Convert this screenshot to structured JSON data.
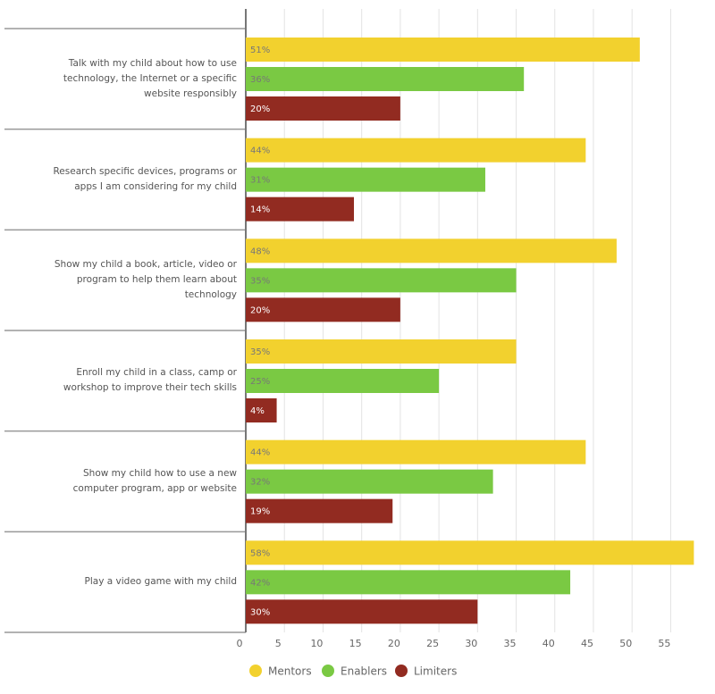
{
  "chart_data": {
    "type": "bar",
    "orientation": "horizontal",
    "categories": [
      "Talk with my child about how to use technology, the Internet or a specific website responsibly",
      "Research specific devices, programs or apps I am considering for my child",
      "Show my child a book, article, video or program to help them learn about technology",
      "Enroll my child in a class, camp or workshop to improve their tech skills",
      "Show my child how to use a new computer program, app or website",
      "Play a video game with my child"
    ],
    "series": [
      {
        "name": "Mentors",
        "color": "#f2d12e",
        "values": [
          51,
          44,
          48,
          35,
          44,
          58
        ],
        "value_labels": [
          "51%",
          "44%",
          "48%",
          "35%",
          "44%",
          "58%"
        ]
      },
      {
        "name": "Enablers",
        "color": "#7ac943",
        "values": [
          36,
          31,
          35,
          25,
          32,
          42
        ],
        "value_labels": [
          "36%",
          "31%",
          "35%",
          "25%",
          "32%",
          "42%"
        ]
      },
      {
        "name": "Limiters",
        "color": "#922b21",
        "values": [
          20,
          14,
          20,
          4,
          19,
          30
        ],
        "value_labels": [
          "20%",
          "14%",
          "20%",
          "4%",
          "19%",
          "30%"
        ]
      }
    ],
    "xlim": [
      0,
      59
    ],
    "xticks": [
      0,
      5,
      10,
      15,
      20,
      25,
      30,
      35,
      40,
      45,
      50,
      55
    ],
    "grid": true,
    "legend": "bottom"
  }
}
